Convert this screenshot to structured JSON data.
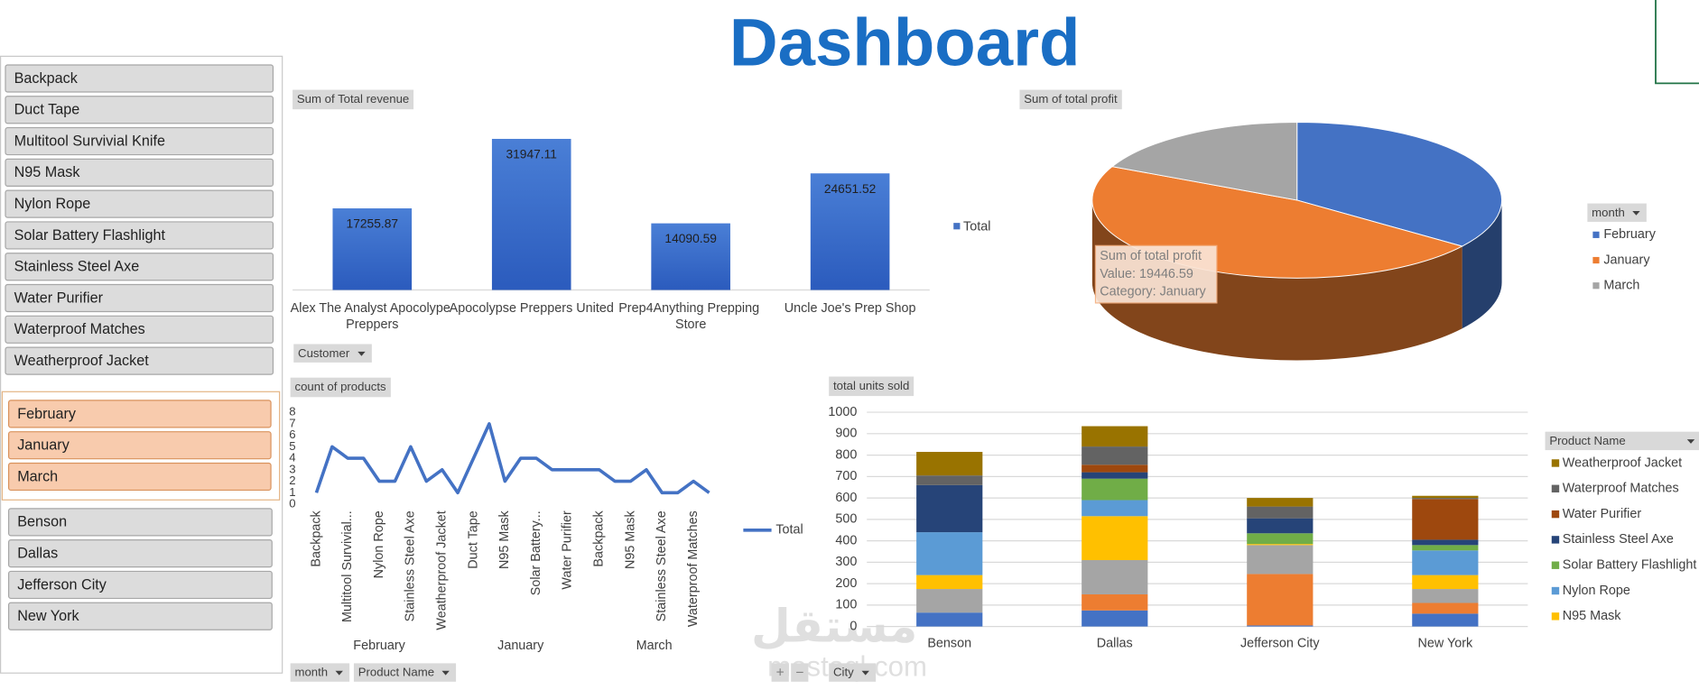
{
  "title": "Dashboard",
  "slicers": {
    "products": [
      "Backpack",
      "Duct Tape",
      "Multitool Survivial Knife",
      "N95 Mask",
      "Nylon Rope",
      "Solar Battery Flashlight",
      "Stainless Steel Axe",
      "Water Purifier",
      "Waterproof Matches",
      "Weatherproof Jacket"
    ],
    "months": [
      "February",
      "January",
      "March"
    ],
    "cities": [
      "Benson",
      "Dallas",
      "Jefferson City",
      "New York"
    ]
  },
  "watermark": [
    "مستقل",
    "mostaql.com"
  ],
  "chart_data": [
    {
      "type": "bar",
      "title": "Sum of Total revenue",
      "categories": [
        "Alex The Analyst Apocolype Preppers",
        "Apocolypse Preppers United",
        "Prep4Anything Prepping Store",
        "Uncle Joe's Prep Shop"
      ],
      "series": [
        {
          "name": "Total",
          "color": "#4472c4",
          "values": [
            17255.87,
            31947.11,
            14090.59,
            24651.52
          ]
        }
      ],
      "ylim": [
        0,
        35000
      ],
      "legend": "right",
      "filters": [
        "Customer"
      ]
    },
    {
      "type": "pie",
      "title": "Sum of total profit",
      "categories": [
        "February",
        "January",
        "March"
      ],
      "values": [
        14500,
        19446.59,
        7400
      ],
      "colors": [
        "#4472c4",
        "#ed7d31",
        "#a5a5a5"
      ],
      "legend_title": "month",
      "legend": "right",
      "tooltip": [
        "Sum of total profit",
        "Value: 19446.59",
        "Category: January"
      ]
    },
    {
      "type": "line",
      "title": "count of products",
      "groups": [
        {
          "name": "February",
          "categories": [
            "Backpack",
            null,
            "Multitool Survivial...",
            null,
            "Nylon Rope",
            null,
            "Stainless Steel Axe",
            null,
            "Weatherproof Jacket"
          ]
        },
        {
          "name": "January",
          "categories": [
            null,
            "Duct Tape",
            null,
            "N95 Mask",
            null,
            "Solar Battery...",
            null,
            "Water Purifier",
            null
          ]
        },
        {
          "name": "March",
          "categories": [
            "Backpack",
            null,
            "N95 Mask",
            null,
            "Stainless Steel Axe",
            null,
            "Waterproof Matches",
            null
          ]
        }
      ],
      "series": [
        {
          "name": "Total",
          "color": "#4472c4",
          "values": [
            1,
            5,
            4,
            4,
            2,
            2,
            5,
            2,
            3,
            1,
            4,
            7,
            2,
            4,
            4,
            3,
            3,
            3,
            3,
            2,
            2,
            3,
            1,
            1,
            2,
            1
          ]
        }
      ],
      "ylim": [
        0,
        8
      ],
      "yticks": [
        0,
        1,
        2,
        3,
        4,
        5,
        6,
        7,
        8
      ],
      "legend": "right",
      "filters": [
        "month",
        "Product Name"
      ]
    },
    {
      "type": "stacked_bar",
      "title": "total units sold",
      "categories": [
        "Benson",
        "Dallas",
        "Jefferson City",
        "New York"
      ],
      "series": [
        {
          "color": "#4472c4",
          "values": [
            65,
            75,
            5,
            60
          ]
        },
        {
          "color": "#ed7d31",
          "values": [
            0,
            75,
            240,
            50
          ]
        },
        {
          "color": "#a5a5a5",
          "values": [
            110,
            160,
            135,
            65
          ]
        },
        {
          "name": "N95 Mask",
          "color": "#ffc000",
          "values": [
            65,
            205,
            5,
            65
          ]
        },
        {
          "name": "Nylon Rope",
          "color": "#5b9bd5",
          "values": [
            200,
            75,
            0,
            115
          ]
        },
        {
          "name": "Solar Battery Flashlight",
          "color": "#70ad47",
          "values": [
            0,
            100,
            50,
            25
          ]
        },
        {
          "name": "Stainless Steel Axe",
          "color": "#264478",
          "values": [
            220,
            30,
            70,
            25
          ]
        },
        {
          "name": "Water Purifier",
          "color": "#9e480e",
          "values": [
            0,
            35,
            0,
            190
          ]
        },
        {
          "name": "Waterproof Matches",
          "color": "#636363",
          "values": [
            45,
            85,
            55,
            5
          ]
        },
        {
          "name": "Weatherproof Jacket",
          "color": "#997300",
          "values": [
            110,
            95,
            40,
            10
          ]
        }
      ],
      "ylim": [
        0,
        1000
      ],
      "yticks": [
        0,
        100,
        200,
        300,
        400,
        500,
        600,
        700,
        800,
        900,
        1000
      ],
      "grid": true,
      "legend_title": "Product Name",
      "legend": "right",
      "filters": [
        "City"
      ],
      "zoom_buttons": [
        "+",
        "−"
      ]
    }
  ]
}
